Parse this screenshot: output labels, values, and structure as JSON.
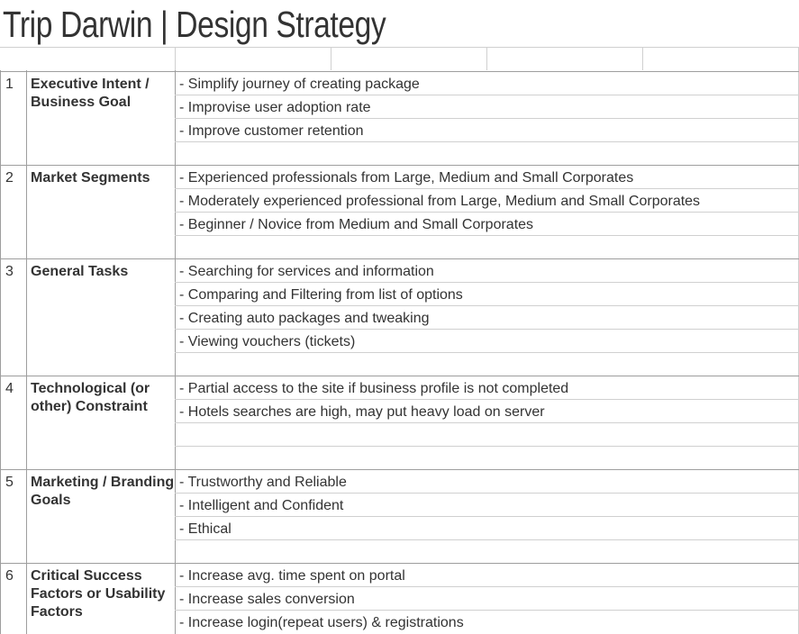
{
  "title": "Trip Darwin  |  Design Strategy",
  "sections": [
    {
      "num": "1",
      "heading": "Executive Intent / Business Goal",
      "items": [
        "- Simplify journey of creating package",
        "- Improvise user adoption rate",
        "- Improve customer retention"
      ]
    },
    {
      "num": "2",
      "heading": "Market Segments",
      "items": [
        "- Experienced professionals from Large, Medium and Small Corporates",
        "- Moderately experienced professional from Large, Medium and Small Corporates",
        "- Beginner / Novice from Medium and Small Corporates"
      ]
    },
    {
      "num": "3",
      "heading": "General Tasks",
      "items": [
        "- Searching for services and information",
        "- Comparing and Filtering from list of options",
        "- Creating auto packages and tweaking",
        "- Viewing vouchers (tickets)"
      ]
    },
    {
      "num": "4",
      "heading": "Technological (or other) Constraint",
      "items": [
        "- Partial access to the site if business profile is not completed",
        "- Hotels searches are high, may put heavy load on server"
      ]
    },
    {
      "num": "5",
      "heading": "Marketing / Branding Goals",
      "items": [
        "- Trustworthy and Reliable",
        "- Intelligent and Confident",
        "- Ethical"
      ]
    },
    {
      "num": "6",
      "heading": "Critical Success Factors or Usability Factors",
      "items": [
        "- Increase avg. time spent on portal",
        "- Increase sales conversion",
        "- Increase login(repeat users) & registrations"
      ]
    }
  ]
}
